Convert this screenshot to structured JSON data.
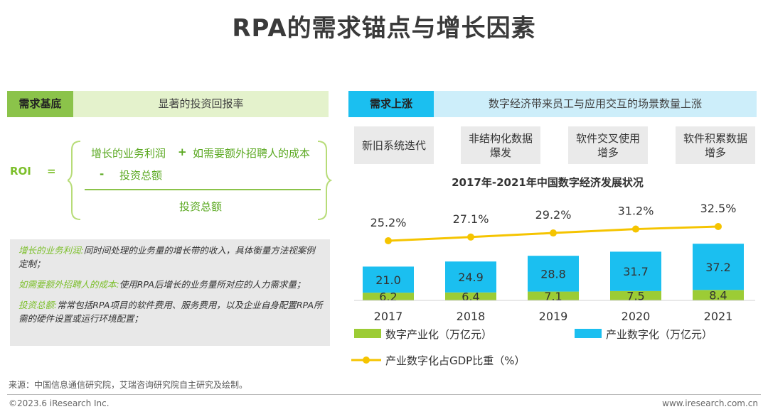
{
  "title": "RPA的需求锚点与增长因素",
  "left": {
    "tag": "需求基底",
    "tag_label": "显著的投资回报率",
    "formula": {
      "lhs": "ROI",
      "eq": "=",
      "num1": "增长的业务利润",
      "plus": "+",
      "num2": "如需要额外招聘人的成本",
      "minus": "-",
      "num3": "投资总额",
      "den": "投资总额"
    },
    "notes": [
      {
        "term": "增长的业务利润:",
        "desc": "同时间处理的业务量的增长带的收入，具体衡量方法视案例定制；"
      },
      {
        "term": "如需要额外招聘人的成本:",
        "desc": "使用RPA后增长的业务量所对应的人力需求量；"
      },
      {
        "term": "投资总额:",
        "desc": "常常包括RPA项目的软件费用、服务费用，以及企业自身配置RPA所需的硬件设置或运行环境配置；"
      }
    ]
  },
  "right": {
    "tag": "需求上涨",
    "tag_label": "数字经济带来员工与应用交互的场景数量上涨",
    "chips": [
      "新旧系统迭代",
      "非结构化数据\n爆发",
      "软件交叉使用\n增多",
      "软件积累数据\n增多"
    ]
  },
  "chart_data": {
    "type": "bar",
    "title": "2017年-2021年中国数字经济发展状况",
    "categories": [
      "2017",
      "2018",
      "2019",
      "2020",
      "2021"
    ],
    "stacked": true,
    "series": [
      {
        "name": "数字产业化（万亿元）",
        "values": [
          6.2,
          6.4,
          7.1,
          7.5,
          8.4
        ],
        "color": "#9ccc35"
      },
      {
        "name": "产业数字化（万亿元）",
        "values": [
          21.0,
          24.9,
          28.8,
          31.7,
          37.2
        ],
        "color": "#1bbff0"
      }
    ],
    "line_series": {
      "name": "产业数字化占GDP比重（%）",
      "values": [
        25.2,
        27.1,
        29.2,
        31.2,
        32.5
      ],
      "labels": [
        "25.2%",
        "27.1%",
        "29.2%",
        "31.2%",
        "32.5%"
      ],
      "color": "#f5c400"
    },
    "value_labels": {
      "bottom": [
        "6.2",
        "6.4",
        "7.1",
        "7.5",
        "8.4"
      ],
      "top": [
        "21.0",
        "24.9",
        "28.8",
        "31.7",
        "37.2"
      ]
    },
    "legend": "bottom"
  },
  "footer": {
    "source": "来源：中国信息通信研究院，艾瑞咨询研究院自主研究及绘制。",
    "copyright": "©2023.6 iResearch Inc.",
    "site": "www.iresearch.com.cn"
  },
  "colors": {
    "green": "#8bc34a",
    "green_light": "#e4f2cc",
    "blue": "#1bbff0",
    "blue_light": "#cdeefa",
    "yellow": "#f5c400"
  }
}
